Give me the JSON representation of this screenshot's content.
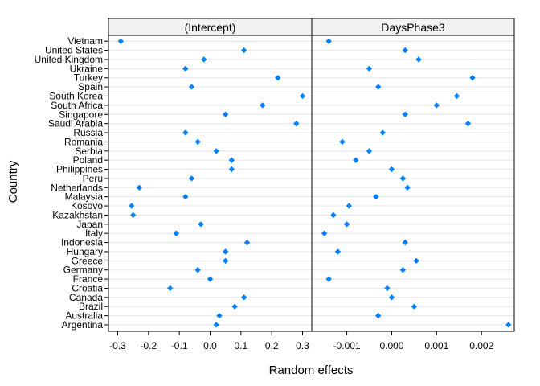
{
  "chart_data": {
    "type": "scatter",
    "title": "",
    "xlabel": "Random effects",
    "ylabel": "Country",
    "grid": "horizontal gridlines per country",
    "marker_color": "#0080ff",
    "countries": [
      "Argentina",
      "Australia",
      "Brazil",
      "Canada",
      "Croatia",
      "France",
      "Germany",
      "Greece",
      "Hungary",
      "Indonesia",
      "Italy",
      "Japan",
      "Kazakhstan",
      "Kosovo",
      "Malaysia",
      "Netherlands",
      "Peru",
      "Philippines",
      "Poland",
      "Serbia",
      "Romania",
      "Russia",
      "Saudi Arabia",
      "Singapore",
      "South Africa",
      "South Korea",
      "Spain",
      "Turkey",
      "Ukraine",
      "United Kingdom",
      "United States",
      "Vietnam"
    ],
    "panels": [
      {
        "name": "(Intercept)",
        "xlim": [
          -0.33,
          0.33
        ],
        "xticks": [
          -0.3,
          -0.2,
          -0.1,
          0.0,
          0.1,
          0.2,
          0.3
        ],
        "xtick_labels": [
          "-0.3",
          "-0.2",
          "-0.1",
          "0.0",
          "0.1",
          "0.2",
          "0.3"
        ],
        "values": [
          0.02,
          0.03,
          0.08,
          0.11,
          -0.13,
          0.0,
          -0.04,
          0.05,
          0.05,
          0.12,
          -0.11,
          -0.03,
          -0.25,
          -0.255,
          -0.08,
          -0.23,
          -0.06,
          0.07,
          0.07,
          0.02,
          -0.04,
          -0.08,
          0.28,
          0.05,
          0.17,
          0.3,
          -0.06,
          0.22,
          -0.08,
          -0.02,
          0.11,
          -0.29
        ]
      },
      {
        "name": "DaysPhase3",
        "xlim": [
          -0.00178,
          0.00273
        ],
        "xticks": [
          -0.001,
          0.0,
          0.001,
          0.002
        ],
        "xtick_labels": [
          "-0.001",
          "0.000",
          "0.001",
          "0.002"
        ],
        "values": [
          0.0026,
          -0.0003,
          0.0005,
          0.0,
          -0.0001,
          -0.0014,
          0.00025,
          0.00055,
          -0.0012,
          0.0003,
          -0.0015,
          -0.001,
          -0.0013,
          -0.00095,
          -0.00035,
          0.00035,
          0.00025,
          0.0,
          -0.0008,
          -0.0005,
          -0.0011,
          -0.0002,
          0.0017,
          0.0003,
          0.001,
          0.00145,
          -0.0003,
          0.0018,
          -0.0005,
          0.0006,
          0.0003,
          -0.0014
        ]
      }
    ]
  }
}
